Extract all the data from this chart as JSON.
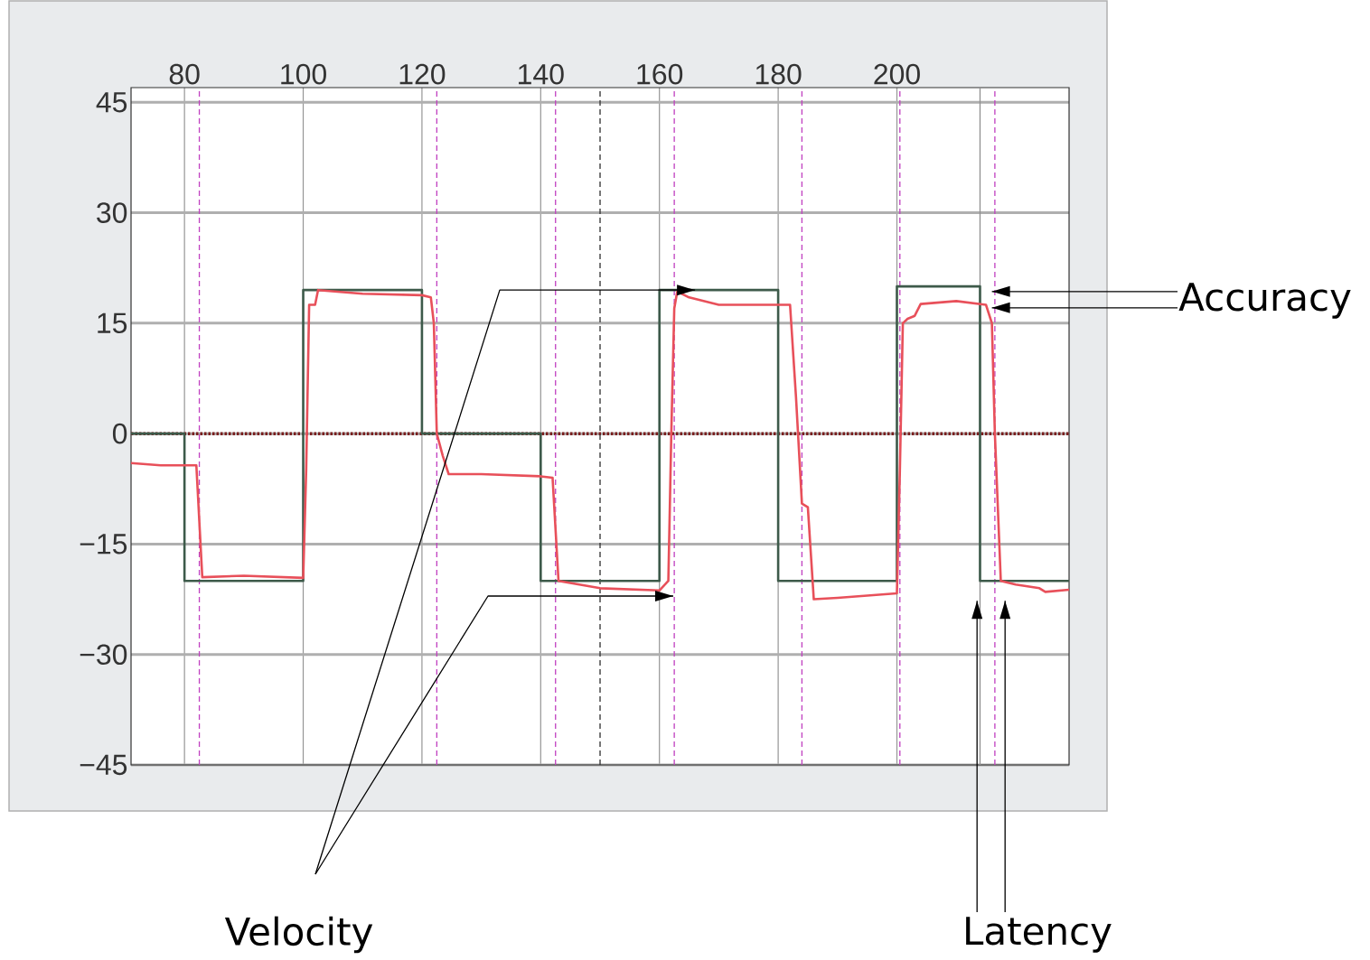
{
  "chart_data": {
    "type": "line",
    "xlim": [
      71,
      229
    ],
    "ylim": [
      -45,
      47
    ],
    "xticks": [
      80,
      100,
      120,
      140,
      160,
      180,
      200
    ],
    "yticks": [
      {
        "value": -45,
        "label": "−45"
      },
      {
        "value": -30,
        "label": "−30"
      },
      {
        "value": -15,
        "label": "−15"
      },
      0,
      15,
      30,
      45
    ],
    "grid": true,
    "series": [
      {
        "color": "#3d5a4a",
        "x": [
          71,
          80,
          80,
          100,
          100,
          120,
          120,
          140,
          140,
          160,
          160,
          180,
          180,
          200,
          200,
          214,
          214,
          229
        ],
        "values": [
          0,
          0,
          -20,
          -20,
          19.5,
          19.5,
          0,
          0,
          -20,
          -20,
          19.5,
          19.5,
          -20,
          -20,
          20,
          20,
          -20,
          -20
        ]
      },
      {
        "color": "#e8505a",
        "x": [
          71,
          76,
          82,
          83,
          90,
          100,
          100.5,
          101,
          102,
          102.5,
          110,
          120,
          121.5,
          122,
          122.5,
          123.5,
          124.5,
          130,
          140,
          142,
          143,
          150,
          160,
          161.5,
          162,
          162.5,
          163,
          165,
          170,
          180,
          182,
          183,
          184,
          185,
          186,
          190,
          200,
          200.5,
          201,
          201.8,
          203,
          204,
          210,
          215,
          216,
          216.5,
          217.5,
          220,
          224,
          225,
          229
        ],
        "values": [
          -4,
          -4.3,
          -4.3,
          -19.5,
          -19.3,
          -19.6,
          -5,
          17.5,
          17.5,
          19.5,
          19,
          18.8,
          18.5,
          15,
          0,
          -3,
          -5.5,
          -5.5,
          -5.8,
          -6,
          -20,
          -21,
          -21.3,
          -20,
          0,
          17,
          19.3,
          18.5,
          17.5,
          17.5,
          17.5,
          5,
          -9.5,
          -10,
          -22.5,
          -22.3,
          -21.7,
          -5,
          15,
          15.6,
          16,
          17.6,
          18,
          17.5,
          15,
          0,
          -20,
          -20.5,
          -21,
          -21.5,
          -21.2
        ]
      }
    ],
    "ref_lines": [
      {
        "axis": "y",
        "value": 0,
        "color": "#7a1f1f",
        "line_style": "dotted"
      },
      {
        "axis": "x",
        "value": 214,
        "color": "#909090",
        "line_style": "solid"
      },
      {
        "axis": "x",
        "value": 82.5,
        "color": "#c040c0",
        "line_style": "dashed"
      },
      {
        "axis": "x",
        "value": 122.5,
        "color": "#c040c0",
        "line_style": "dashed"
      },
      {
        "axis": "x",
        "value": 142.5,
        "color": "#c040c0",
        "line_style": "dashed"
      },
      {
        "axis": "x",
        "value": 150,
        "color": "#303030",
        "line_style": "dashed"
      },
      {
        "axis": "x",
        "value": 162.5,
        "color": "#c040c0",
        "line_style": "dashed"
      },
      {
        "axis": "x",
        "value": 184,
        "color": "#c040c0",
        "line_style": "dashed"
      },
      {
        "axis": "x",
        "value": 200.5,
        "color": "#c040c0",
        "line_style": "dashed"
      },
      {
        "axis": "x",
        "value": 216.5,
        "color": "#c040c0",
        "line_style": "dashed"
      }
    ],
    "annotations": [
      {
        "text": "Accuracy",
        "x": 216,
        "y": 19.3
      },
      {
        "text": "Velocity",
        "x": 166,
        "y": 19.5
      },
      {
        "text": "Latency",
        "x": 213.5,
        "y": -22.7
      }
    ]
  }
}
